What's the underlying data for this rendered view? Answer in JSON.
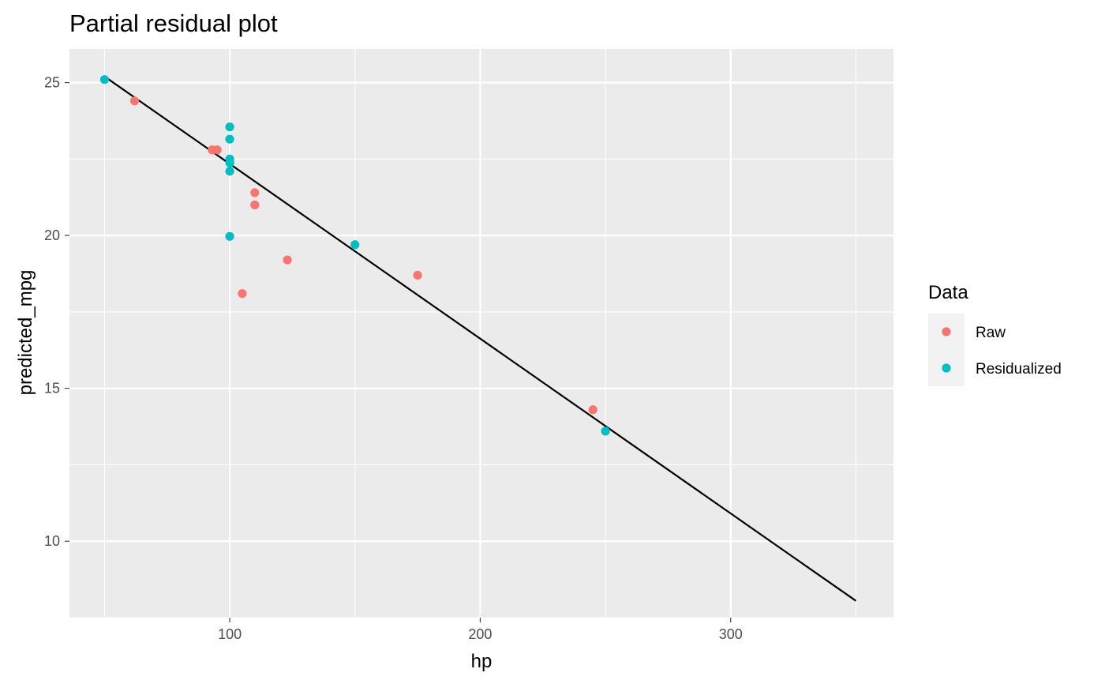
{
  "chart_data": {
    "type": "scatter",
    "title": "Partial residual plot",
    "xlabel": "hp",
    "ylabel": "predicted_mpg",
    "xlim": [
      36,
      365
    ],
    "ylim": [
      7.5,
      26.1
    ],
    "x_ticks": [
      100,
      200,
      300
    ],
    "x_minor_ticks": [
      50,
      150,
      250,
      350
    ],
    "y_ticks": [
      10,
      15,
      20,
      25
    ],
    "y_minor_ticks": [
      7.5,
      12.5,
      17.5,
      22.5
    ],
    "grid": true,
    "legend_title": "Data",
    "legend_position": "right",
    "series": [
      {
        "name": "Raw",
        "color": "#F8766D",
        "points": [
          {
            "x": 62,
            "y": 24.4
          },
          {
            "x": 93,
            "y": 22.8
          },
          {
            "x": 95,
            "y": 22.8
          },
          {
            "x": 110,
            "y": 21.4
          },
          {
            "x": 110,
            "y": 21.0
          },
          {
            "x": 110,
            "y": 21.0
          },
          {
            "x": 105,
            "y": 18.1
          },
          {
            "x": 123,
            "y": 19.2
          },
          {
            "x": 175,
            "y": 18.7
          },
          {
            "x": 245,
            "y": 14.3
          }
        ]
      },
      {
        "name": "Residualized",
        "color": "#00BFC4",
        "points": [
          {
            "x": 50,
            "y": 25.1
          },
          {
            "x": 100,
            "y": 23.55
          },
          {
            "x": 100,
            "y": 23.15
          },
          {
            "x": 100,
            "y": 22.5
          },
          {
            "x": 100,
            "y": 22.38
          },
          {
            "x": 100,
            "y": 22.1
          },
          {
            "x": 100,
            "y": 19.97
          },
          {
            "x": 150,
            "y": 19.7
          },
          {
            "x": 250,
            "y": 13.6
          }
        ]
      }
    ],
    "fit_line": {
      "color": "#000000",
      "points": [
        {
          "x": 50,
          "y": 25.2
        },
        {
          "x": 350,
          "y": 8.05
        }
      ]
    }
  }
}
